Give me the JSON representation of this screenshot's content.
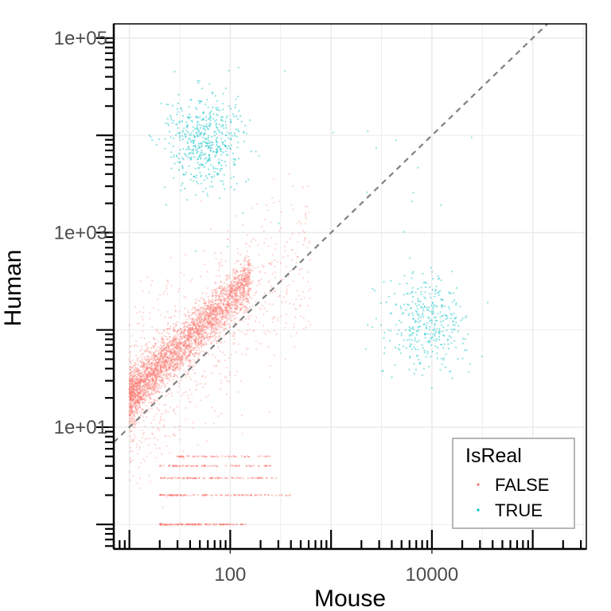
{
  "chart_data": {
    "type": "scatter",
    "title": "",
    "xlabel": "Mouse",
    "ylabel": "Human",
    "x_scale": "log10",
    "y_scale": "log10",
    "xlim": [
      7,
      340000
    ],
    "ylim": [
      0.56,
      140000
    ],
    "x_ticks": [
      {
        "value": 100,
        "label": "100"
      },
      {
        "value": 10000,
        "label": "10000"
      }
    ],
    "y_ticks": [
      {
        "value": 10,
        "label": "1e+01"
      },
      {
        "value": 1000,
        "label": "1e+03"
      },
      {
        "value": 100000,
        "label": "1e+05"
      }
    ],
    "grid": true,
    "legend": {
      "title": "IsReal",
      "position": "bottom-right"
    },
    "reference_line": {
      "type": "identity",
      "slope": 1,
      "intercept": 0,
      "style": "dashed",
      "color": "#808080"
    },
    "series": [
      {
        "name": "FALSE",
        "color": "#F8766D",
        "clusters": [
          {
            "kind": "correlated",
            "x_log10_range": [
              1.0,
              2.2
            ],
            "y_log10_mean": "x+0.32",
            "n": 3200
          },
          {
            "kind": "spread",
            "x_log10_range": [
              1.0,
              2.8
            ],
            "y_log10_range": [
              0.6,
              3.0
            ],
            "n": 900
          },
          {
            "kind": "row",
            "y": 1,
            "x_range": [
              20,
              150
            ],
            "n": 130
          },
          {
            "kind": "row",
            "y": 2,
            "x_range": [
              20,
              400
            ],
            "n": 110
          },
          {
            "kind": "row",
            "y": 3,
            "x_range": [
              20,
              300
            ],
            "n": 90
          },
          {
            "kind": "row",
            "y": 4,
            "x_range": [
              20,
              260
            ],
            "n": 80
          },
          {
            "kind": "row",
            "y": 5,
            "x_range": [
              30,
              250
            ],
            "n": 60
          }
        ]
      },
      {
        "name": "TRUE",
        "color": "#00BFC4",
        "clusters": [
          {
            "kind": "blob",
            "x_log10_center": 1.75,
            "y_log10_center": 3.95,
            "n": 520
          },
          {
            "kind": "blob",
            "x_log10_center": 3.95,
            "y_log10_center": 2.05,
            "n": 360
          },
          {
            "kind": "sparse",
            "n": 35
          }
        ]
      }
    ]
  }
}
